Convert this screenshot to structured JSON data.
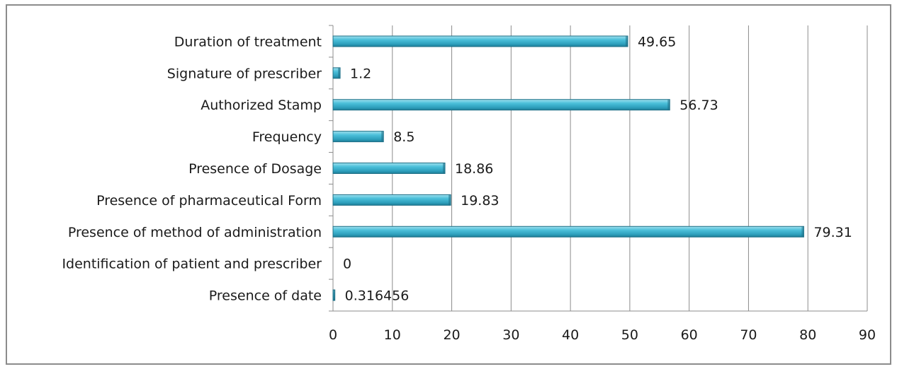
{
  "chart_data": {
    "type": "bar",
    "orientation": "horizontal",
    "categories": [
      "Duration of treatment",
      "Signature of prescriber",
      "Authorized Stamp",
      "Frequency",
      "Presence of Dosage",
      "Presence of pharmaceutical Form",
      "Presence of method of administration",
      "Identification of patient and prescriber",
      "Presence of date"
    ],
    "values": [
      49.65,
      1.2,
      56.73,
      8.5,
      18.86,
      19.83,
      79.31,
      0,
      0.316456
    ],
    "value_labels": [
      "49.65",
      "1.2",
      "56.73",
      "8.5",
      "18.86",
      "19.83",
      "79.31",
      "0",
      "0.316456"
    ],
    "title": "",
    "xlabel": "",
    "ylabel": "",
    "xlim": [
      0,
      90
    ],
    "xticks": [
      0,
      10,
      20,
      30,
      40,
      50,
      60,
      70,
      80,
      90
    ],
    "xtick_labels": [
      "0",
      "10",
      "20",
      "30",
      "40",
      "50",
      "60",
      "70",
      "80",
      "90"
    ],
    "grid": true,
    "legend": "none",
    "bar_color": "#3fb3cf",
    "bar_edge_color": "#1f6f86",
    "grid_color": "#8c8c8c"
  }
}
